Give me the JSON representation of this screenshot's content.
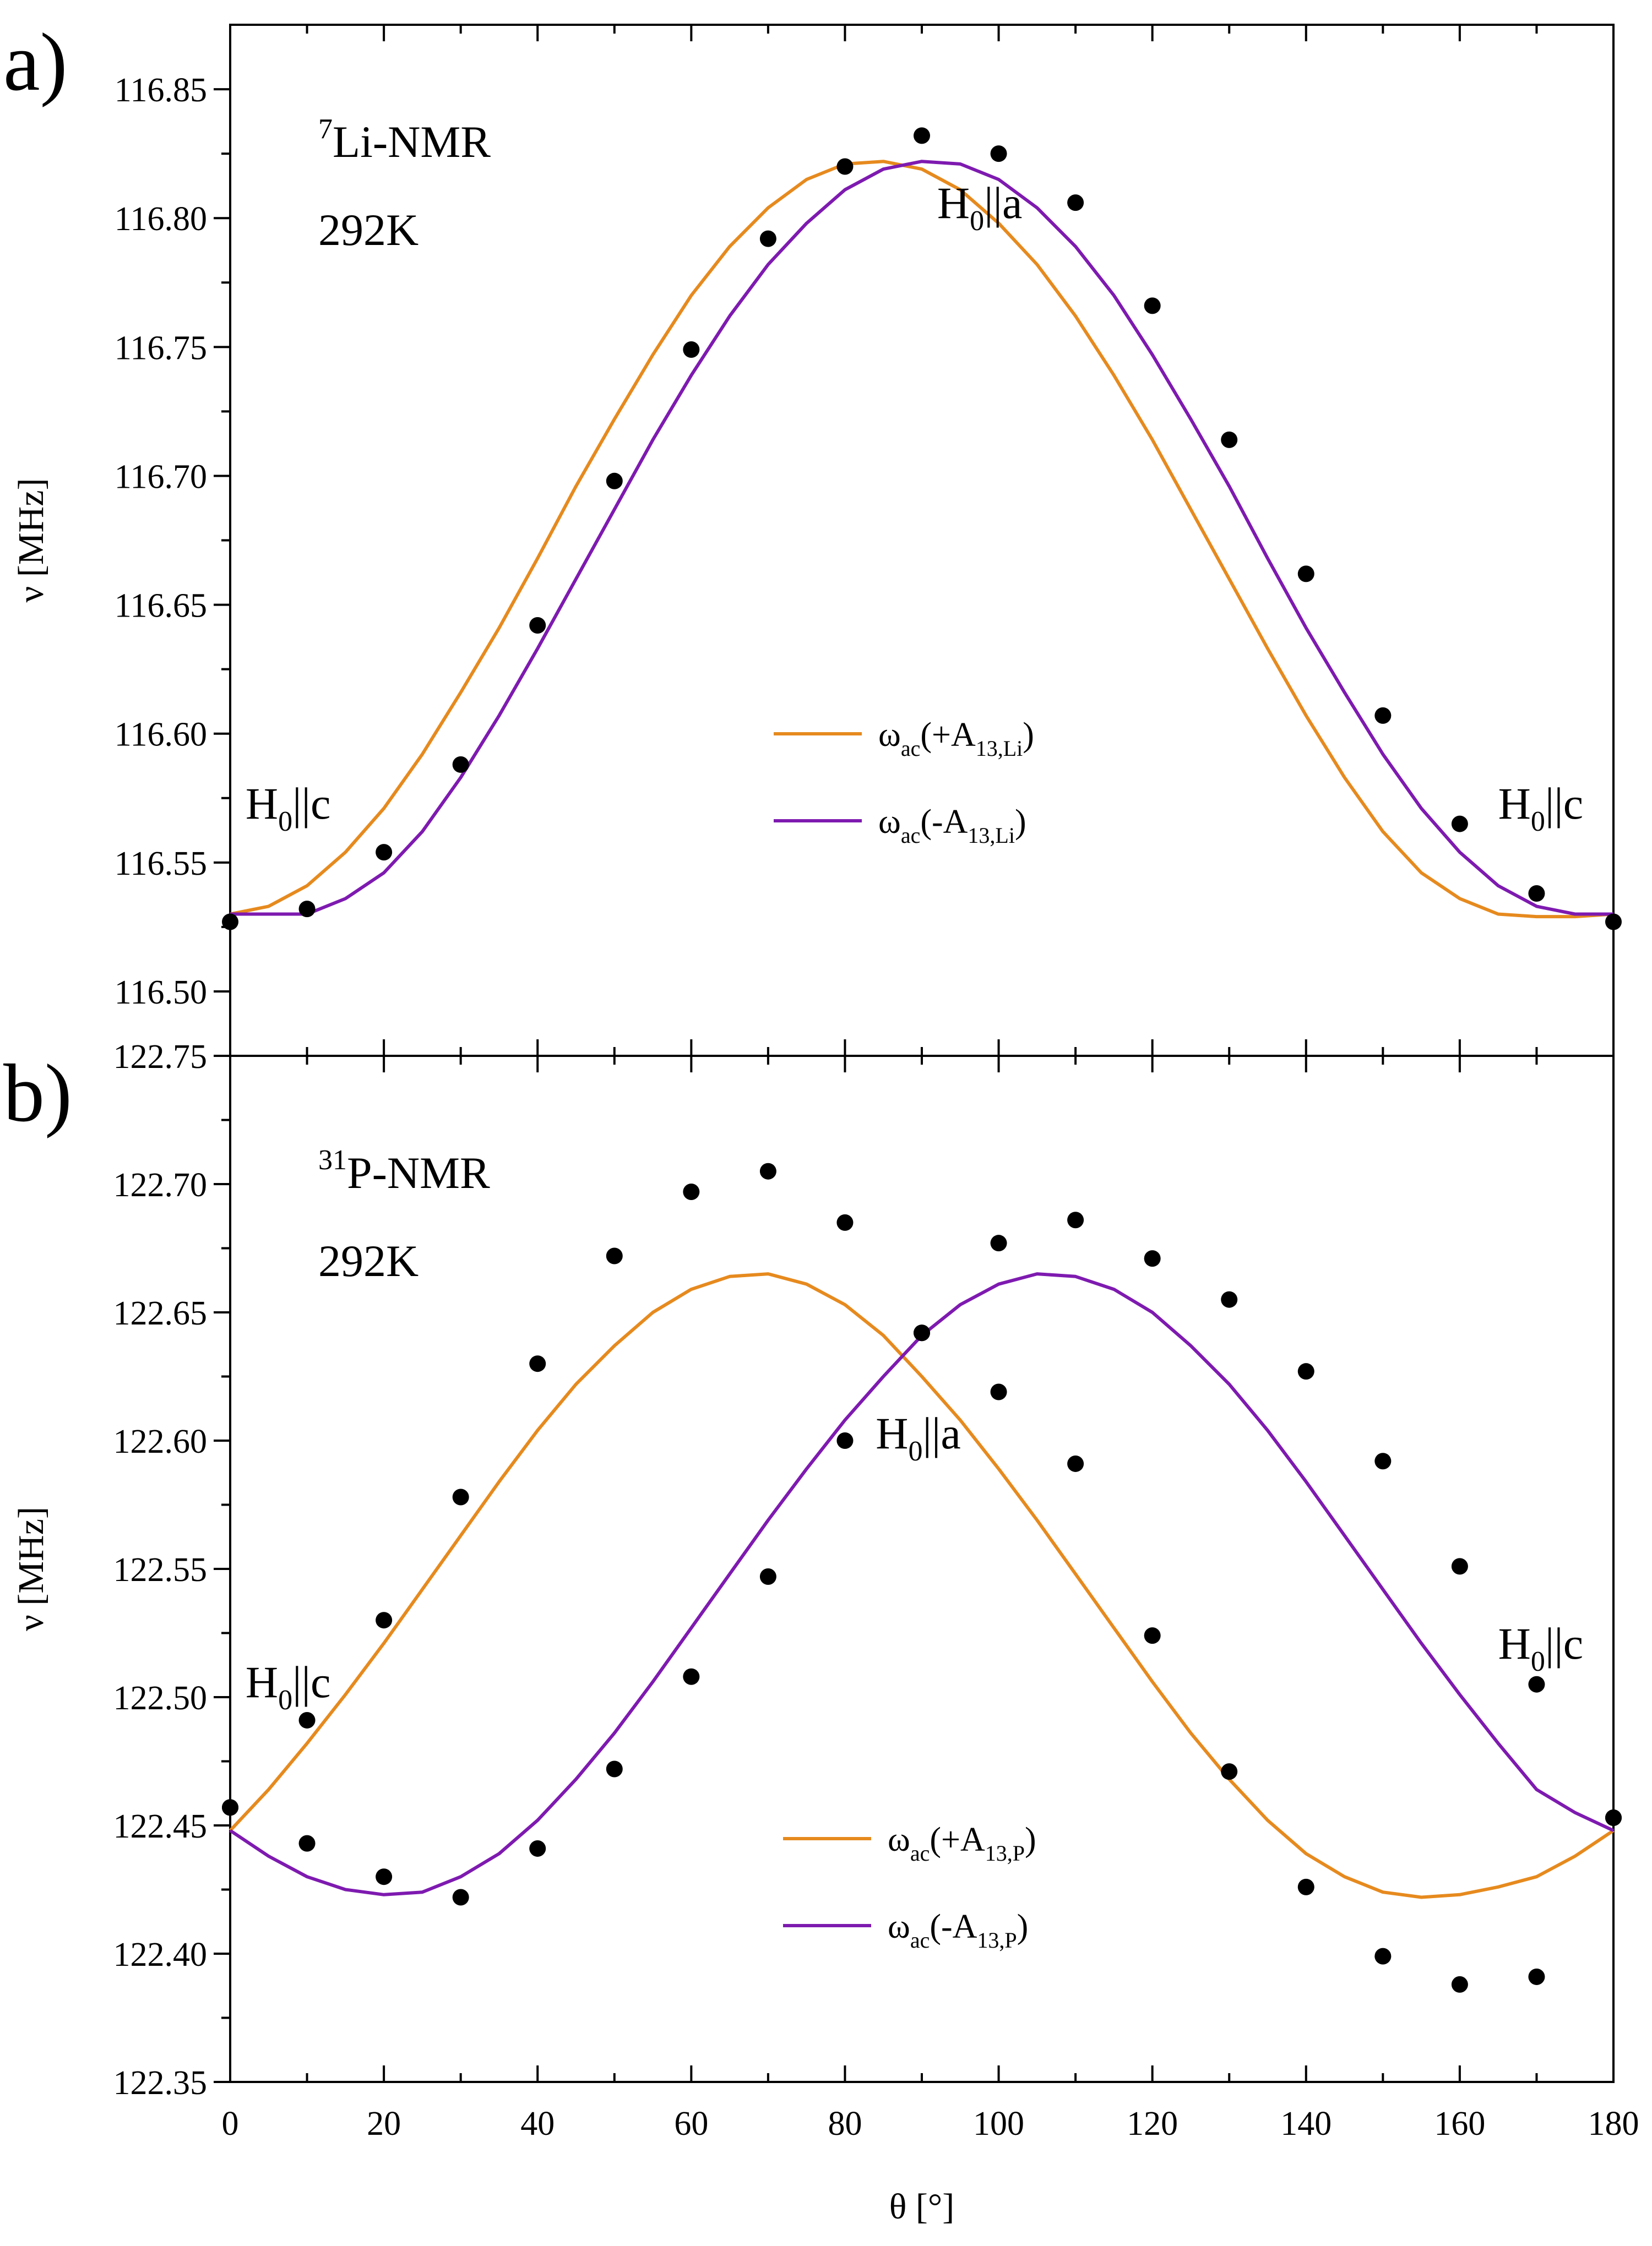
{
  "chart_data": [
    {
      "type": "scatter",
      "panel_label": "a)",
      "nucleus": {
        "pre": "7",
        "main": "Li-NMR"
      },
      "temperature": "292K",
      "ylabel": "ν [MHz]",
      "xlim": [
        0,
        180
      ],
      "ylim": [
        116.475,
        116.875
      ],
      "y_ticks": [
        "116.50",
        "116.55",
        "116.60",
        "116.65",
        "116.70",
        "116.75",
        "116.80",
        "116.85"
      ],
      "annotations": [
        {
          "main": "H",
          "sub": "0",
          "rest": "||a",
          "x": 92,
          "y": 116.8
        },
        {
          "main": "H",
          "sub": "0",
          "rest": "||c",
          "x": 2,
          "y": 116.567
        },
        {
          "main": "H",
          "sub": "0",
          "rest": "||c",
          "x": 165,
          "y": 116.567
        }
      ],
      "series": [
        {
          "name": "data",
          "x": [
            0,
            10,
            20,
            30,
            40,
            50,
            60,
            70,
            80,
            90,
            100,
            110,
            120,
            130,
            140,
            150,
            160,
            170,
            180
          ],
          "y": [
            116.527,
            116.532,
            116.554,
            116.588,
            116.642,
            116.698,
            116.749,
            116.792,
            116.82,
            116.832,
            116.825,
            116.806,
            116.766,
            116.714,
            116.662,
            116.607,
            116.565,
            116.538,
            116.527
          ]
        },
        {
          "name": "ω_ac(+A_13,Li)",
          "legend": {
            "w": "ω",
            "sub1": "ac",
            "mid": "(+A",
            "sub2": "13,Li",
            "end": ")"
          },
          "color": "#E68A1E",
          "x": [
            0,
            5,
            10,
            15,
            20,
            25,
            30,
            35,
            40,
            45,
            50,
            55,
            60,
            65,
            70,
            75,
            80,
            85,
            90,
            95,
            100,
            105,
            110,
            115,
            120,
            125,
            130,
            135,
            140,
            145,
            150,
            155,
            160,
            165,
            170,
            175,
            180
          ],
          "y": [
            116.53,
            116.533,
            116.541,
            116.554,
            116.571,
            116.592,
            116.616,
            116.641,
            116.668,
            116.696,
            116.722,
            116.747,
            116.77,
            116.789,
            116.804,
            116.815,
            116.821,
            116.822,
            116.819,
            116.811,
            116.798,
            116.782,
            116.762,
            116.739,
            116.714,
            116.687,
            116.66,
            116.633,
            116.607,
            116.583,
            116.562,
            116.546,
            116.536,
            116.53,
            116.529,
            116.529,
            116.53
          ]
        },
        {
          "name": "ω_ac(-A_13,Li)",
          "legend": {
            "w": "ω",
            "sub1": "ac",
            "mid": "(-A",
            "sub2": "13,Li",
            "end": ")"
          },
          "color": "#7E1AB0",
          "x": [
            0,
            5,
            10,
            15,
            20,
            25,
            30,
            35,
            40,
            45,
            50,
            55,
            60,
            65,
            70,
            75,
            80,
            85,
            90,
            95,
            100,
            105,
            110,
            115,
            120,
            125,
            130,
            135,
            140,
            145,
            150,
            155,
            160,
            165,
            170,
            175,
            180
          ],
          "y": [
            116.53,
            116.53,
            116.53,
            116.536,
            116.546,
            116.562,
            116.583,
            116.607,
            116.633,
            116.66,
            116.687,
            116.714,
            116.739,
            116.762,
            116.782,
            116.798,
            116.811,
            116.819,
            116.822,
            116.821,
            116.815,
            116.804,
            116.789,
            116.77,
            116.747,
            116.722,
            116.696,
            116.668,
            116.641,
            116.616,
            116.592,
            116.571,
            116.554,
            116.541,
            116.533,
            116.53,
            116.53
          ]
        }
      ]
    },
    {
      "type": "scatter",
      "panel_label": "b)",
      "nucleus": {
        "pre": "31",
        "main": "P-NMR"
      },
      "temperature": "292K",
      "xlabel": "θ [°]",
      "ylabel": "ν [MHz]",
      "xlim": [
        0,
        180
      ],
      "ylim": [
        122.35,
        122.75
      ],
      "x_ticks": [
        0,
        20,
        40,
        60,
        80,
        100,
        120,
        140,
        160,
        180
      ],
      "y_ticks": [
        "122.35",
        "122.40",
        "122.45",
        "122.50",
        "122.55",
        "122.60",
        "122.65",
        "122.70",
        "122.75"
      ],
      "annotations": [
        {
          "main": "H",
          "sub": "0",
          "rest": "||a",
          "x": 84,
          "y": 122.597
        },
        {
          "main": "H",
          "sub": "0",
          "rest": "||c",
          "x": 2,
          "y": 122.5
        },
        {
          "main": "H",
          "sub": "0",
          "rest": "||c",
          "x": 165,
          "y": 122.515
        }
      ],
      "series": [
        {
          "name": "data",
          "x": [
            0,
            10,
            20,
            30,
            40,
            50,
            60,
            70,
            80,
            90,
            100,
            110,
            120,
            130,
            140,
            150,
            160,
            170,
            180,
            0,
            10,
            20,
            30,
            40,
            50,
            60,
            70,
            80,
            90,
            100,
            110,
            120,
            130,
            140,
            150,
            160,
            170,
            180
          ],
          "y": [
            122.457,
            122.491,
            122.53,
            122.578,
            122.63,
            122.672,
            122.697,
            122.705,
            122.685,
            122.642,
            122.619,
            122.591,
            122.524,
            122.471,
            122.426,
            122.399,
            122.388,
            122.391,
            122.453,
            122.457,
            122.443,
            122.43,
            122.422,
            122.441,
            122.472,
            122.508,
            122.547,
            122.6,
            122.642,
            122.677,
            122.686,
            122.671,
            122.655,
            122.627,
            122.592,
            122.551,
            122.505,
            122.453
          ]
        },
        {
          "name": "ω_ac(+A_13,P)",
          "legend": {
            "w": "ω",
            "sub1": "ac",
            "mid": "(+A",
            "sub2": "13,P",
            "end": ")"
          },
          "color": "#E68A1E",
          "x": [
            0,
            5,
            10,
            15,
            20,
            25,
            30,
            35,
            40,
            45,
            50,
            55,
            60,
            65,
            70,
            75,
            80,
            85,
            90,
            95,
            100,
            105,
            110,
            115,
            120,
            125,
            130,
            135,
            140,
            145,
            150,
            155,
            160,
            165,
            170,
            175,
            180
          ],
          "y": [
            122.448,
            122.464,
            122.482,
            122.501,
            122.521,
            122.542,
            122.563,
            122.584,
            122.604,
            122.622,
            122.637,
            122.65,
            122.659,
            122.664,
            122.665,
            122.661,
            122.653,
            122.641,
            122.625,
            122.608,
            122.589,
            122.569,
            122.548,
            122.527,
            122.506,
            122.486,
            122.468,
            122.452,
            122.439,
            122.43,
            122.424,
            122.422,
            122.423,
            122.426,
            122.43,
            122.438,
            122.448
          ]
        },
        {
          "name": "ω_ac(-A_13,P)",
          "legend": {
            "w": "ω",
            "sub1": "ac",
            "mid": "(-A",
            "sub2": "13,P",
            "end": ")"
          },
          "color": "#7E1AB0",
          "x": [
            0,
            5,
            10,
            15,
            20,
            25,
            30,
            35,
            40,
            45,
            50,
            55,
            60,
            65,
            70,
            75,
            80,
            85,
            90,
            95,
            100,
            105,
            110,
            115,
            120,
            125,
            130,
            135,
            140,
            145,
            150,
            155,
            160,
            165,
            170,
            175,
            180
          ],
          "y": [
            122.448,
            122.438,
            122.43,
            122.425,
            122.423,
            122.424,
            122.43,
            122.439,
            122.452,
            122.468,
            122.486,
            122.506,
            122.527,
            122.548,
            122.569,
            122.589,
            122.608,
            122.625,
            122.641,
            122.653,
            122.661,
            122.665,
            122.664,
            122.659,
            122.65,
            122.637,
            122.622,
            122.604,
            122.584,
            122.563,
            122.542,
            122.521,
            122.501,
            122.482,
            122.464,
            122.455,
            122.448
          ]
        }
      ]
    }
  ]
}
